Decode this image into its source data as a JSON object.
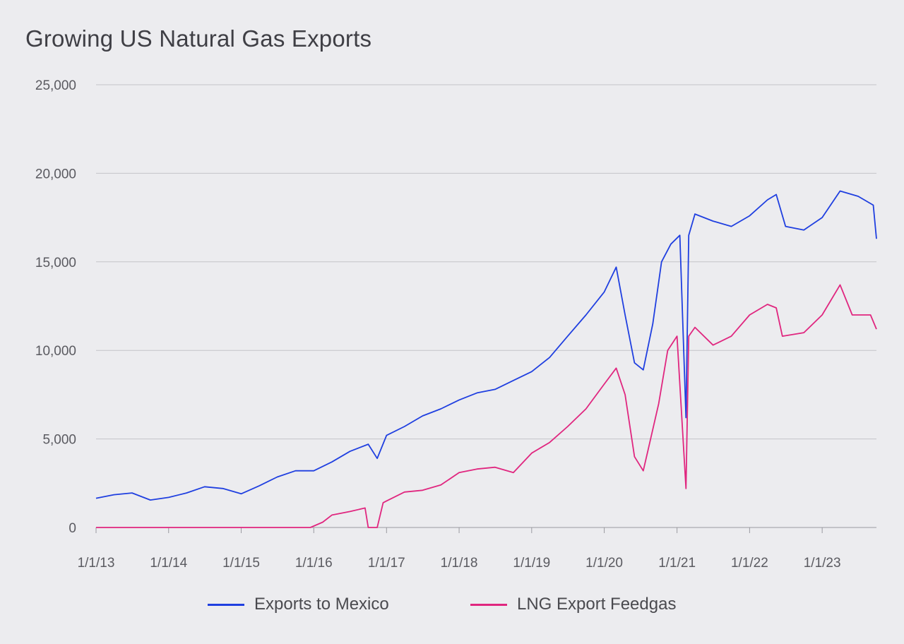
{
  "chart_data": {
    "type": "line",
    "title": "Growing US Natural Gas Exports",
    "ylim": [
      0,
      25000
    ],
    "yticks": [
      0,
      5000,
      10000,
      15000,
      20000,
      25000
    ],
    "ytick_labels": [
      "0",
      "5,000",
      "10,000",
      "15,000",
      "20,000",
      "25,000"
    ],
    "xlim": [
      "2013-01-01",
      "2023-10-01"
    ],
    "xtick_labels": [
      "1/1/13",
      "1/1/14",
      "1/1/15",
      "1/1/16",
      "1/1/17",
      "1/1/18",
      "1/1/19",
      "1/1/20",
      "1/1/21",
      "1/1/22",
      "1/1/23"
    ],
    "grid": true,
    "legend_position": "bottom",
    "series": [
      {
        "name": "Exports to Mexico",
        "color": "#1f3fe0",
        "points": [
          [
            "2013-01-01",
            1650
          ],
          [
            "2013-04-01",
            1850
          ],
          [
            "2013-07-01",
            1950
          ],
          [
            "2013-10-01",
            1550
          ],
          [
            "2014-01-01",
            1700
          ],
          [
            "2014-04-01",
            1950
          ],
          [
            "2014-07-01",
            2300
          ],
          [
            "2014-10-01",
            2200
          ],
          [
            "2015-01-01",
            1900
          ],
          [
            "2015-04-01",
            2350
          ],
          [
            "2015-07-01",
            2850
          ],
          [
            "2015-10-01",
            3200
          ],
          [
            "2016-01-01",
            3200
          ],
          [
            "2016-04-01",
            3700
          ],
          [
            "2016-07-01",
            4300
          ],
          [
            "2016-10-01",
            4700
          ],
          [
            "2016-11-15",
            3900
          ],
          [
            "2017-01-01",
            5200
          ],
          [
            "2017-04-01",
            5700
          ],
          [
            "2017-07-01",
            6300
          ],
          [
            "2017-10-01",
            6700
          ],
          [
            "2018-01-01",
            7200
          ],
          [
            "2018-04-01",
            7600
          ],
          [
            "2018-07-01",
            7800
          ],
          [
            "2018-10-01",
            8300
          ],
          [
            "2019-01-01",
            8800
          ],
          [
            "2019-04-01",
            9600
          ],
          [
            "2019-07-01",
            10800
          ],
          [
            "2019-10-01",
            12000
          ],
          [
            "2020-01-01",
            13300
          ],
          [
            "2020-03-01",
            14700
          ],
          [
            "2020-04-15",
            12000
          ],
          [
            "2020-06-01",
            9300
          ],
          [
            "2020-07-15",
            8900
          ],
          [
            "2020-09-01",
            11500
          ],
          [
            "2020-10-15",
            15000
          ],
          [
            "2020-12-01",
            16000
          ],
          [
            "2021-01-15",
            16500
          ],
          [
            "2021-02-15",
            6200
          ],
          [
            "2021-03-01",
            16500
          ],
          [
            "2021-04-01",
            17700
          ],
          [
            "2021-07-01",
            17300
          ],
          [
            "2021-10-01",
            17000
          ],
          [
            "2022-01-01",
            17600
          ],
          [
            "2022-04-01",
            18500
          ],
          [
            "2022-05-15",
            18800
          ],
          [
            "2022-07-01",
            17000
          ],
          [
            "2022-10-01",
            16800
          ],
          [
            "2023-01-01",
            17500
          ],
          [
            "2023-04-01",
            19000
          ],
          [
            "2023-07-01",
            18700
          ],
          [
            "2023-09-15",
            18200
          ],
          [
            "2023-10-01",
            16300
          ]
        ]
      },
      {
        "name": "LNG Export Feedgas",
        "color": "#e0267f",
        "points": [
          [
            "2013-01-01",
            0
          ],
          [
            "2014-01-01",
            0
          ],
          [
            "2015-01-01",
            0
          ],
          [
            "2015-12-15",
            0
          ],
          [
            "2016-02-15",
            300
          ],
          [
            "2016-04-01",
            700
          ],
          [
            "2016-07-01",
            900
          ],
          [
            "2016-09-15",
            1100
          ],
          [
            "2016-10-01",
            0
          ],
          [
            "2016-11-15",
            0
          ],
          [
            "2016-12-15",
            1400
          ],
          [
            "2017-01-01",
            1500
          ],
          [
            "2017-04-01",
            2000
          ],
          [
            "2017-07-01",
            2100
          ],
          [
            "2017-10-01",
            2400
          ],
          [
            "2018-01-01",
            3100
          ],
          [
            "2018-04-01",
            3300
          ],
          [
            "2018-07-01",
            3400
          ],
          [
            "2018-10-01",
            3100
          ],
          [
            "2019-01-01",
            4200
          ],
          [
            "2019-04-01",
            4800
          ],
          [
            "2019-07-01",
            5700
          ],
          [
            "2019-10-01",
            6700
          ],
          [
            "2020-01-01",
            8100
          ],
          [
            "2020-03-01",
            9000
          ],
          [
            "2020-04-15",
            7500
          ],
          [
            "2020-06-01",
            4000
          ],
          [
            "2020-07-15",
            3200
          ],
          [
            "2020-08-15",
            4700
          ],
          [
            "2020-10-01",
            7000
          ],
          [
            "2020-11-15",
            10000
          ],
          [
            "2021-01-01",
            10800
          ],
          [
            "2021-02-15",
            2200
          ],
          [
            "2021-03-01",
            10800
          ],
          [
            "2021-04-01",
            11300
          ],
          [
            "2021-07-01",
            10300
          ],
          [
            "2021-10-01",
            10800
          ],
          [
            "2022-01-01",
            12000
          ],
          [
            "2022-04-01",
            12600
          ],
          [
            "2022-05-15",
            12400
          ],
          [
            "2022-06-15",
            10800
          ],
          [
            "2022-10-01",
            11000
          ],
          [
            "2023-01-01",
            12000
          ],
          [
            "2023-04-01",
            13700
          ],
          [
            "2023-06-01",
            12000
          ],
          [
            "2023-09-01",
            12000
          ],
          [
            "2023-10-01",
            11200
          ]
        ]
      }
    ]
  }
}
